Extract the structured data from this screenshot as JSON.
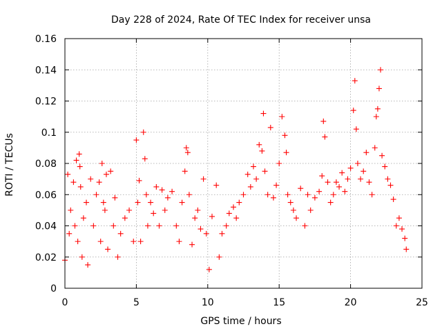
{
  "chart_data": {
    "type": "scatter",
    "title": "Day 228 of 2024, Rate Of TEC Index for receiver unsa",
    "xlabel": "GPS time / hours",
    "ylabel": "ROTI / TECUs",
    "xlim": [
      0,
      25
    ],
    "ylim": [
      0,
      0.16
    ],
    "xticks": [
      "0",
      "5",
      "10",
      "15",
      "20",
      "25"
    ],
    "yticks": [
      "0",
      "0.02",
      "0.04",
      "0.06",
      "0.08",
      "0.1",
      "0.12",
      "0.14",
      "0.16"
    ],
    "grid": true,
    "legend": "none",
    "marker": "+",
    "color": "#ff0000",
    "series": [
      {
        "x": [
          0.0,
          0.2,
          0.3,
          0.4,
          0.6,
          0.7,
          0.8,
          0.9,
          1.0,
          1.05,
          1.1,
          1.2,
          1.3,
          1.5,
          1.6,
          1.8,
          2.0,
          2.2,
          2.4,
          2.5,
          2.6,
          2.7,
          2.8,
          2.9,
          3.0,
          3.2,
          3.4,
          3.5,
          3.7,
          3.9,
          4.2,
          4.5,
          4.8,
          5.0,
          5.1,
          5.2,
          5.3,
          5.5,
          5.6,
          5.7,
          5.8,
          6.0,
          6.2,
          6.4,
          6.6,
          6.8,
          7.0,
          7.2,
          7.5,
          7.8,
          8.0,
          8.2,
          8.4,
          8.5,
          8.6,
          8.7,
          8.9,
          9.1,
          9.3,
          9.5,
          9.7,
          9.9,
          10.1,
          10.3,
          10.6,
          10.8,
          11.0,
          11.3,
          11.5,
          11.8,
          12.0,
          12.2,
          12.5,
          12.8,
          13.0,
          13.2,
          13.4,
          13.6,
          13.8,
          13.9,
          14.0,
          14.2,
          14.4,
          14.6,
          14.8,
          15.0,
          15.2,
          15.4,
          15.5,
          15.6,
          15.8,
          16.0,
          16.2,
          16.5,
          16.8,
          17.0,
          17.2,
          17.5,
          17.8,
          18.0,
          18.1,
          18.2,
          18.4,
          18.6,
          18.8,
          19.0,
          19.2,
          19.4,
          19.6,
          19.8,
          20.0,
          20.2,
          20.3,
          20.4,
          20.5,
          20.7,
          20.9,
          21.1,
          21.3,
          21.5,
          21.7,
          21.8,
          21.9,
          22.0,
          22.1,
          22.2,
          22.4,
          22.6,
          22.8,
          23.0,
          23.2,
          23.4,
          23.6,
          23.8,
          23.9
        ],
        "y": [
          0.018,
          0.073,
          0.035,
          0.05,
          0.068,
          0.04,
          0.082,
          0.03,
          0.086,
          0.078,
          0.065,
          0.02,
          0.045,
          0.055,
          0.015,
          0.07,
          0.04,
          0.06,
          0.068,
          0.03,
          0.08,
          0.055,
          0.05,
          0.073,
          0.025,
          0.075,
          0.04,
          0.058,
          0.02,
          0.035,
          0.045,
          0.05,
          0.03,
          0.095,
          0.055,
          0.069,
          0.03,
          0.1,
          0.083,
          0.06,
          0.04,
          0.055,
          0.048,
          0.065,
          0.04,
          0.063,
          0.05,
          0.058,
          0.062,
          0.04,
          0.03,
          0.055,
          0.075,
          0.09,
          0.087,
          0.06,
          0.028,
          0.045,
          0.05,
          0.038,
          0.07,
          0.035,
          0.012,
          0.046,
          0.066,
          0.02,
          0.035,
          0.04,
          0.048,
          0.052,
          0.045,
          0.055,
          0.06,
          0.073,
          0.065,
          0.078,
          0.07,
          0.092,
          0.088,
          0.112,
          0.075,
          0.06,
          0.103,
          0.058,
          0.066,
          0.08,
          0.11,
          0.098,
          0.087,
          0.06,
          0.055,
          0.05,
          0.045,
          0.064,
          0.04,
          0.06,
          0.05,
          0.058,
          0.062,
          0.072,
          0.107,
          0.097,
          0.068,
          0.055,
          0.06,
          0.068,
          0.065,
          0.074,
          0.062,
          0.07,
          0.077,
          0.114,
          0.133,
          0.102,
          0.08,
          0.07,
          0.075,
          0.087,
          0.068,
          0.06,
          0.09,
          0.11,
          0.115,
          0.128,
          0.14,
          0.085,
          0.078,
          0.07,
          0.066,
          0.057,
          0.04,
          0.045,
          0.038,
          0.032,
          0.025
        ]
      }
    ]
  }
}
